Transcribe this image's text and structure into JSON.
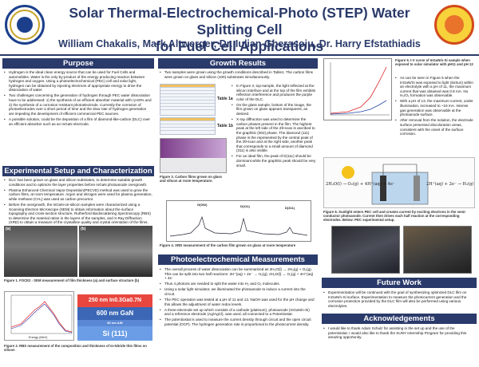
{
  "header": {
    "title_line1": "Solar Thermal-Electrochemical-Photo (STEP) Water Splitting Cell",
    "title_line2": "for Fuel Cell Applications",
    "authors": "William Chakalis, Mark Altwerger, Dr. Iulian Gherasoiu, Dr. Harry Efstathiadis"
  },
  "purpose": {
    "heading": "Purpose",
    "bullets": [
      "Hydrogen is the ideal clean energy source that can be used for Fuel Cells and automobiles. Water is the only by-product of the energy producing reaction between hydrogen and oxygen. Using a photoelectrochemical (PEC) cell and solar light, hydrogen can be obtained by injecting electrons of appropriate energy to drive the dissociation of water.",
      "Two challenges concerning the generation of hydrogen through PEC water dissociation have to be addressed: 1) the synthesis of an efficient absorber material with η>20% and 2) the synthesis of a corrosion resistant photoelectrode. Currently the corrosion of photoelectrodes over a short period of time and the slow rate of hydrogen generation are impeding the development of efficient commercial PEC sources.",
      "A possible solution, could be the deposition of a film of diamond-like-carbon (DLC) over an efficient absorber such as an InGaN electrode."
    ]
  },
  "setup": {
    "heading": "Experimental Setup and Characterization",
    "bullets": [
      "DLC has been grown on glass and silicon substrates, to determine suitable growth conditions and to optimize the layer properties before InGaN photoanode overgrowth.",
      "Plasma Enhanced Chemical Vapor Deposition(PECVD) method was used to grow the carbon films, at room temperature. Argon and nitrogen were used for plasma generation, while methane (CH₄) was used as carbon precursor.",
      "Before the overgrowth, the InGaN-on-silicon samples were characterized using a Scanning Electron Microscope (SEM) to obtain information about the surface topography and cross-section structure, Rutherford Backscattering Spectroscopy (RBS) to determine the material ratios in the layers of the samples, and X-Ray Diffraction (XRD) to obtain a measure of the crystalline quality and crystal orientation of the films."
    ],
    "sem_labels": [
      "(a)",
      "(b)"
    ],
    "fig1_caption": "Figure 1. FOCE2 - SEM measurement of film thickness (a) and surface structure (b)",
    "rbs_label": "Energy (MeV)",
    "layers": {
      "l1": "250 nm In0.3Ga0.7N",
      "l2": "600 nm GaN",
      "l3": "80 nm AlN",
      "l4": "Si (111)"
    },
    "fig2_caption": "Figure 2. RBS measurement of the composition and thickness of In-Nitride thin films on silicon"
  },
  "growth": {
    "heading": "Growth Results",
    "intro": "Two samples were grown using the growth conditions described in Table1. The carbon films were grown on glass and silicon (100) substrates simultaneously.",
    "table_labels": [
      "Table 1a",
      "Table 1b"
    ],
    "bullets": [
      "In Figure 3, top-sample, the light reflected at the silicon interface and at the top of the film exhibits reflection interference and produces the purple color of the DLC.",
      "On the glass sample, bottom of the image, the film grown on glass appears transparent, as desired.",
      "X-ray diffraction was used to determine the carbon phases present in the film. The highest peak at the left side of the 2θ-scan is ascribed to the graphitic (002) phase. The diamond (111) phase is the represented by the central peak of the 2θ-scan and at the right side, another peak that corresponds to a small amount of diamond (311) is also visible.",
      "For an ideal film, the peak of D(111) should be dominant while the graphitic peak should be very small."
    ],
    "fig3_caption": "Figure 3. Carbon films grown on glass and silicon at room temperature.",
    "xrd_peaks": [
      "G(002)",
      "D(111)",
      "D(311)"
    ],
    "fig4_caption": "Figure 4. XRD measurement of the carbon film grown on glass at room temperature"
  },
  "photo": {
    "heading": "Photoelectrochemical Measurements",
    "bullets": [
      "The overall process of water dissociation can be summarized as 2H₂O(l) → 2H₂(g) + O₂(g). This can be split into two half reactions: 2H⁺(aq) + 2e⁻ → H₂(g); 2H₂O(l) → O₂(g) + 4H⁺(aq) + 4e⁻",
      "Thus 4 photons are needed to split the water into H₂ and O₂ molecules.",
      "Using a solar light simulator, we illuminated the photoanode to induce a current into the circuit.",
      "The PEC operation was tested at a pH of 11 and 13. NaOH was used for the pH change and this allows the adjustment of water redox levels.",
      "A three-electrode set up which consists of a cathode (platinum), photoanode (InGaN/n-Si) and a reference electrode (Ag/AgCl), was used, all connected to a Potentiostat.",
      "The potentiostat is used to measure the current density through circuit and the open circuit potential (OCP). The hydrogen generation rate is proportional to the photocurrent density."
    ]
  },
  "results": {
    "fig5_caption": "Figure 5. I-V curve of InGaN/n-Si sample when exposed to solar simulator with pH11 and pH 13",
    "bullets": [
      "As can be seen in Figure 5 when the InGaN/Si was exposed to light (5xSun) within an electrolyte with a pH of 11, the maximum current that was obtained was 0.8 mA. No H₂/O₂ formation was observable.",
      "With a pH of 13, the maximum current, under illumination, increased to ~16 mA. Intense gas generation was observable at the photoanode surface.",
      "After removal from the solution, the electrode surface presented discoloration areas, consistent with the onset of the surface corrosion."
    ],
    "eq_left": "2H₂O(l) → O₂(g) + 4H⁺(aq) + 4e⁻",
    "eq_right": "2H⁺(aq) + 2e⁻ → H₂(g)",
    "fig6_caption": "Figure 6. Sunlight enters PEC cell and creates current by exciting electrons in the semi-conductor photoanode. Current then drives each half reaction at the corresponding electrodes. Below: PEC experimental setup."
  },
  "future": {
    "heading": "Future Work",
    "bullets": [
      "Experimentation will be continued with the goal of synthesizing optimized DLC film on InGaN/n-Si surface. Experimentation to measure the photocurrent generation and the corrosion protection provided by the DLC film will also be performed using various electrolytes."
    ]
  },
  "ack": {
    "heading": "Acknowledgements",
    "bullets": [
      "I would like to thank Adam Schulz for assisting in the set up and the use of the potentiostat. I would also like to thank the SUNY Internship Program for providing this amazing opportunity."
    ]
  }
}
